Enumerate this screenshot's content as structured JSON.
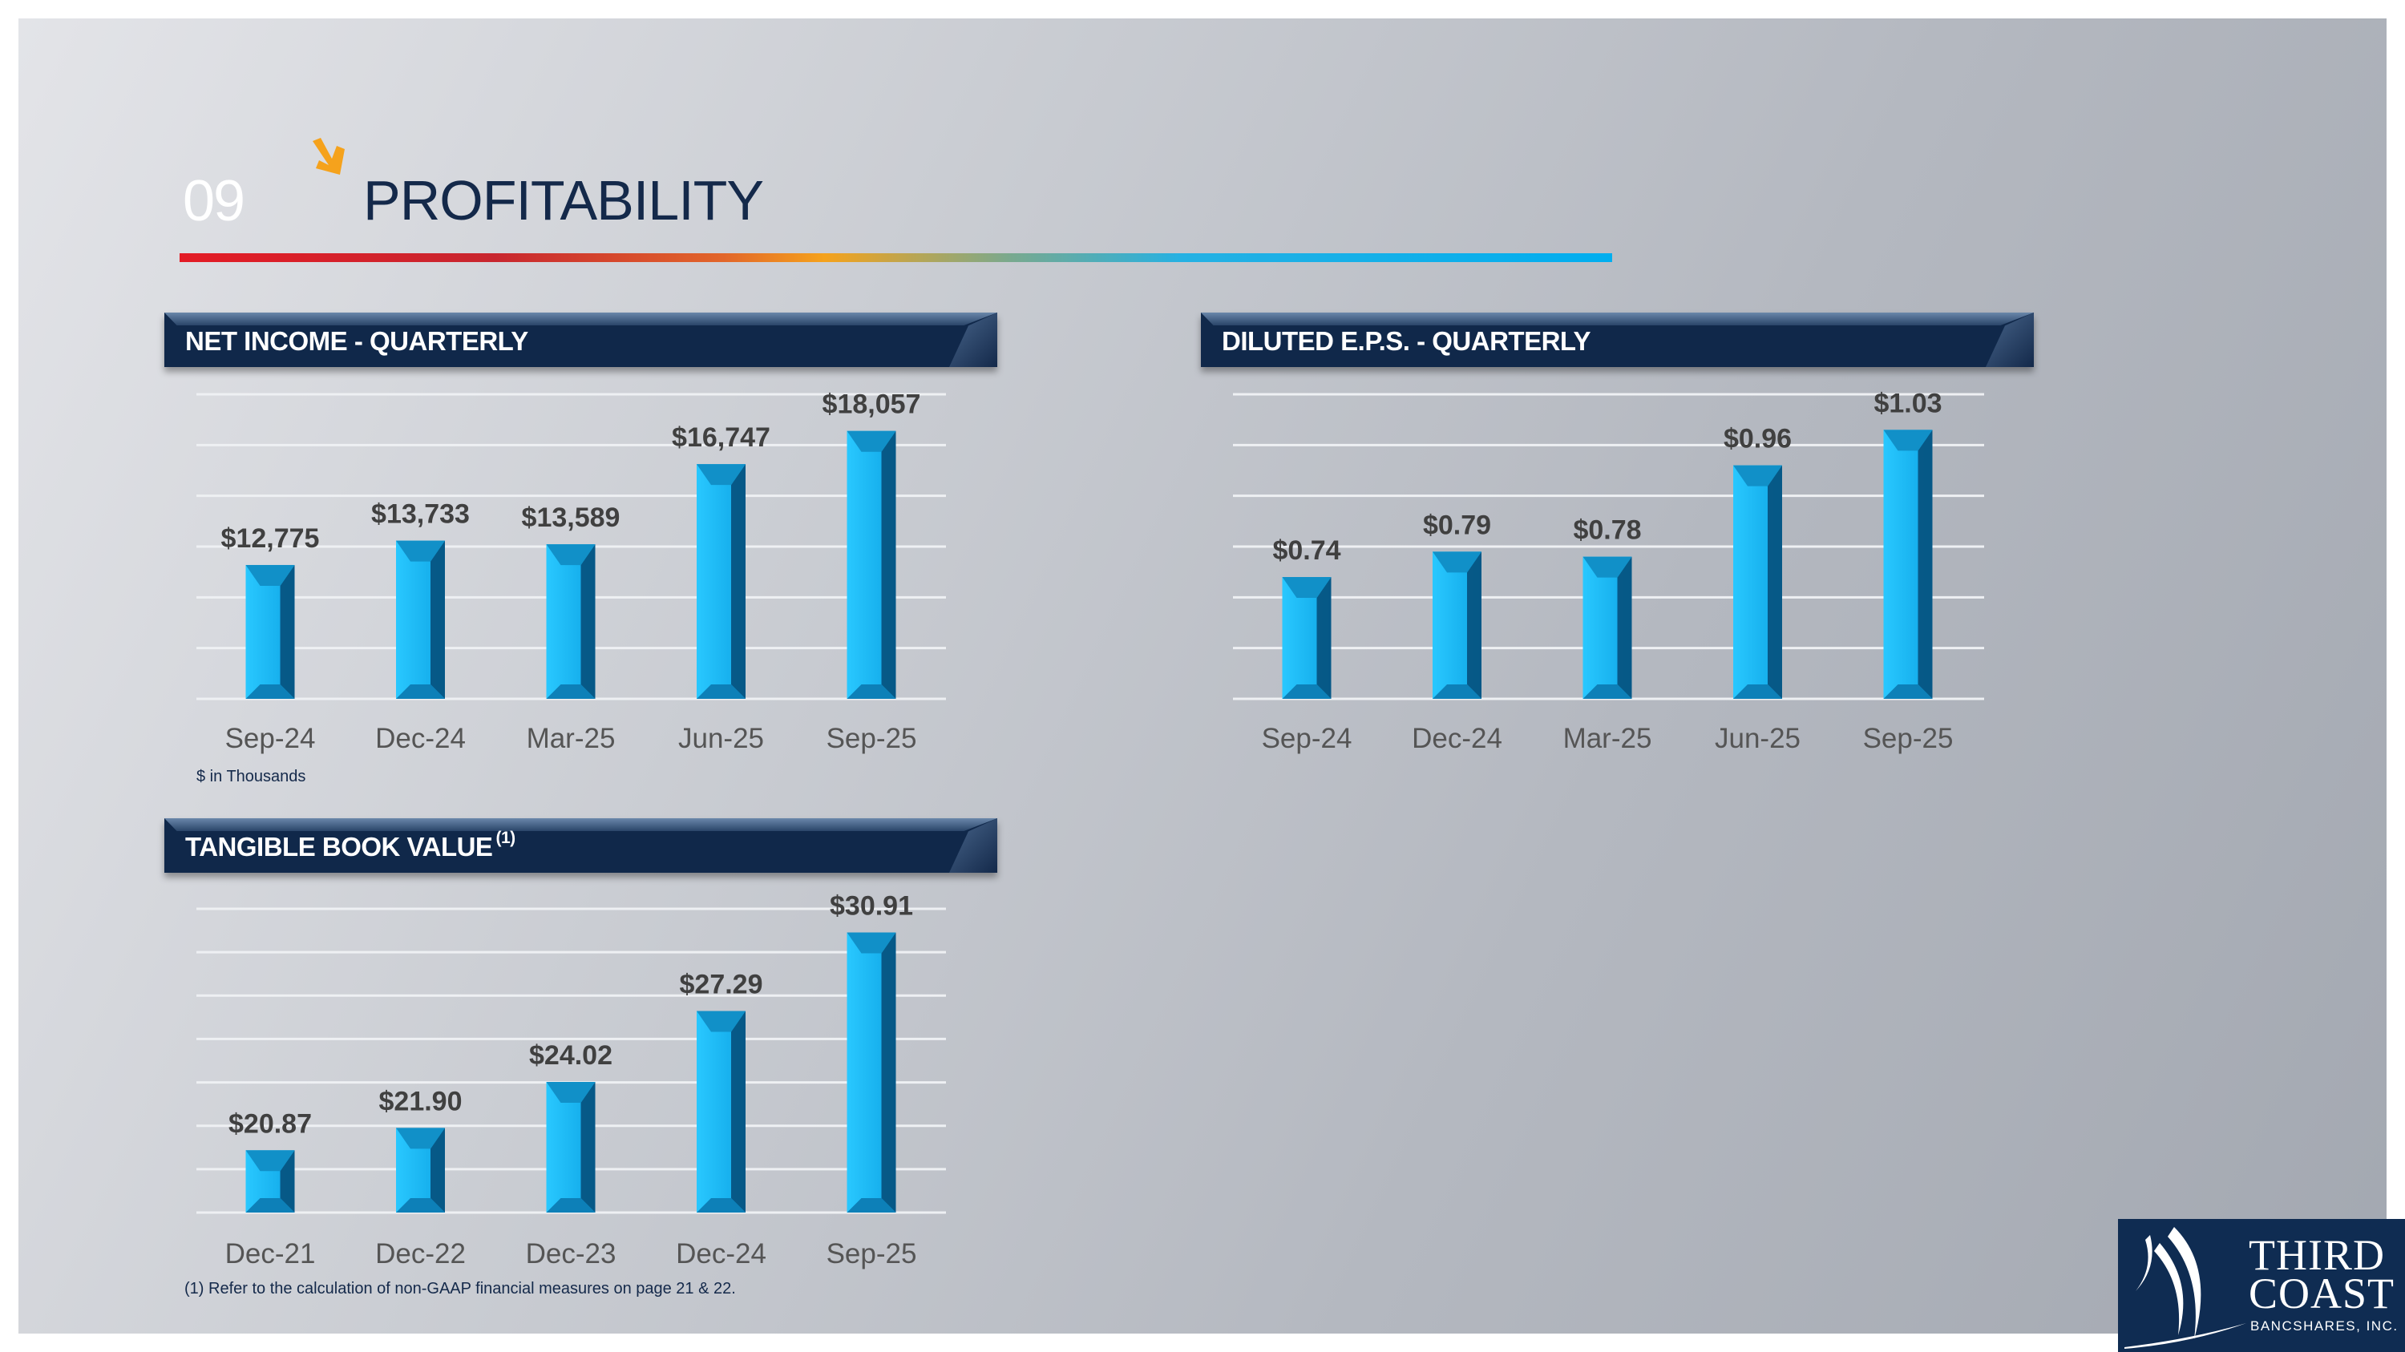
{
  "header": {
    "section_number": "09",
    "title": "PROFITABILITY"
  },
  "footnotes": {
    "units": "$ in Thousands",
    "non_gaap": "(1) Refer to the calculation of non-GAAP financial measures on page 21 & 22."
  },
  "logo": {
    "line1": "THIRD",
    "line2": "COAST",
    "line3": "BANCSHARES, INC."
  },
  "colors": {
    "navy": "#10284a",
    "bar": "#1ab8f0",
    "bar_dark": "#05507c",
    "label": "#404040",
    "accent_orange": "#f5a21c"
  },
  "chart_data": [
    {
      "type": "bar",
      "title": "NET INCOME - QUARTERLY",
      "title_note": "",
      "categories": [
        "Sep-24",
        "Dec-24",
        "Mar-25",
        "Jun-25",
        "Sep-25"
      ],
      "values": [
        12775,
        13733,
        13589,
        16747,
        18057
      ],
      "labels": [
        "$12,775",
        "$13,733",
        "$13,589",
        "$16,747",
        "$18,057"
      ],
      "ylabel": "$ in Thousands",
      "ylim": [
        7500,
        19500
      ],
      "ystep": 2000,
      "grid": true
    },
    {
      "type": "bar",
      "title": "DILUTED E.P.S. - QUARTERLY",
      "title_note": "",
      "categories": [
        "Sep-24",
        "Dec-24",
        "Mar-25",
        "Jun-25",
        "Sep-25"
      ],
      "values": [
        0.74,
        0.79,
        0.78,
        0.96,
        1.03
      ],
      "labels": [
        "$0.74",
        "$0.79",
        "$0.78",
        "$0.96",
        "$1.03"
      ],
      "ylim": [
        0.5,
        1.1
      ],
      "ystep": 0.1,
      "grid": true
    },
    {
      "type": "bar",
      "title": "TANGIBLE BOOK VALUE",
      "title_note": "(1)",
      "categories": [
        "Dec-21",
        "Dec-22",
        "Dec-23",
        "Dec-24",
        "Sep-25"
      ],
      "values": [
        20.87,
        21.9,
        24.02,
        27.29,
        30.91
      ],
      "labels": [
        "$20.87",
        "$21.90",
        "$24.02",
        "$27.29",
        "$30.91"
      ],
      "ylim": [
        18,
        32
      ],
      "ystep": 2,
      "grid": true
    }
  ]
}
